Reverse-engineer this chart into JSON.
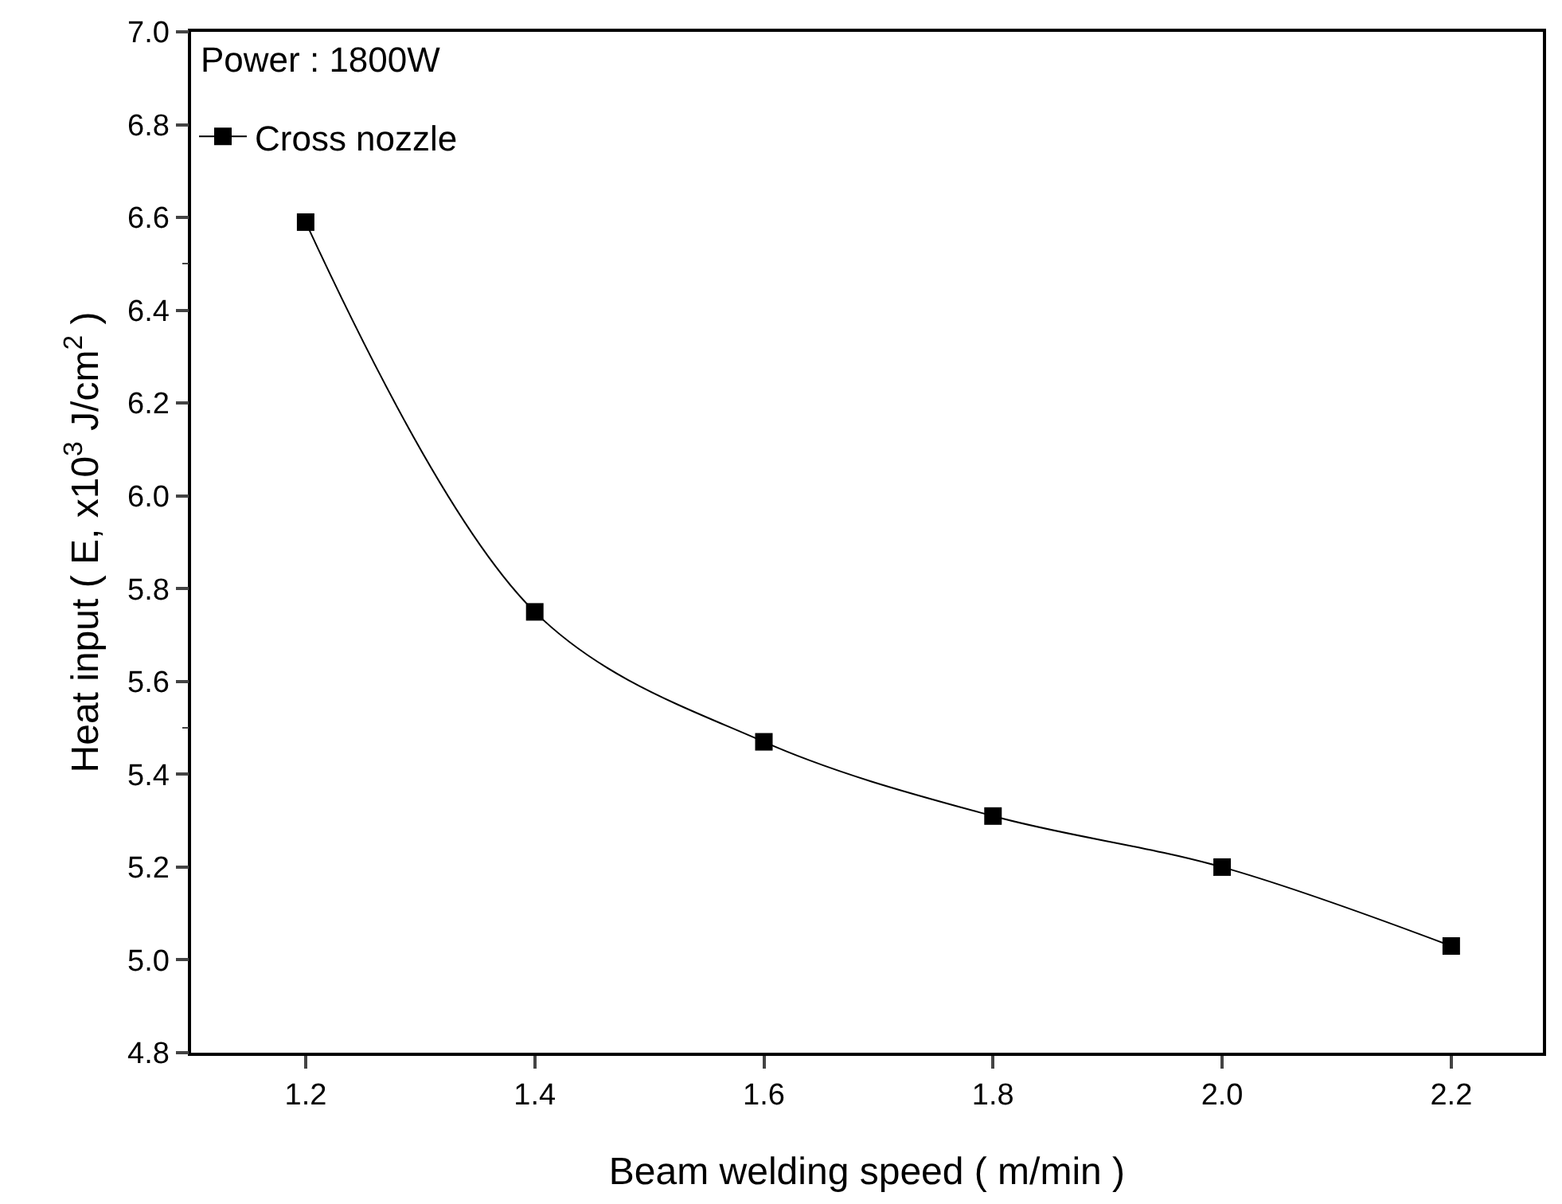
{
  "chart_data": {
    "type": "line",
    "xlabel": "Beam welding speed ( m/min )",
    "ylabel": "Heat input ( E, x10$^{3}$ J/cm$^{2}$ )",
    "annotations": [
      "Power : 1800W"
    ],
    "x": [
      1.2,
      1.4,
      1.6,
      1.8,
      2.0,
      2.2
    ],
    "series": [
      {
        "name": "Cross nozzle",
        "color": "#000000",
        "values": [
          6.59,
          5.75,
          5.47,
          5.31,
          5.2,
          5.03
        ]
      }
    ],
    "xlim": [
      1.1,
      2.28
    ],
    "xticks": [
      1.2,
      1.4,
      1.6,
      1.8,
      {
        "value": 2.0,
        "label": "2.0"
      },
      2.2
    ],
    "ylim": [
      4.8,
      7.0
    ],
    "yticks": [
      4.8,
      {
        "value": 5.0,
        "label": "5.0"
      },
      5.2,
      5.4,
      5.6,
      5.8,
      {
        "value": 6.0,
        "label": "6.0"
      },
      6.2,
      6.4,
      6.6,
      6.8,
      {
        "value": 7.0,
        "label": "7.0"
      }
    ],
    "grid": false,
    "legend": "top left",
    "marker": "square",
    "line_style": "solid"
  }
}
